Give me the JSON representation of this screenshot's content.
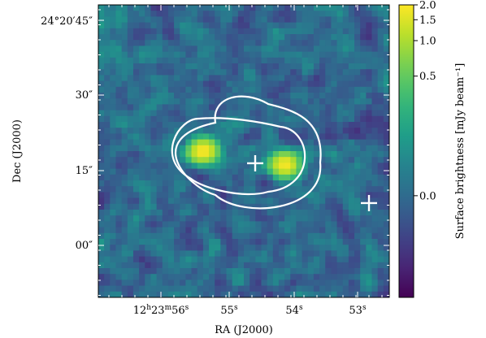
{
  "chart_data": {
    "type": "heatmap",
    "title": "",
    "xlabel": "RA (J2000)",
    "ylabel": "Dec (J2000)",
    "colorbar_label": "Surface brightness [mJy beam⁻¹]",
    "x_tick_labels": [
      "12h23m56s",
      "55s",
      "54s",
      "53s"
    ],
    "y_tick_labels": [
      "24°20′45″",
      "30″",
      "15″",
      "00″"
    ],
    "colorbar_tick_labels": [
      "2.0",
      "1.5",
      "1.0",
      "0.5",
      "0.0"
    ],
    "colorbar_ticks": [
      2.0,
      1.5,
      1.0,
      0.5,
      0.0
    ],
    "colorbar_range": [
      -0.35,
      2.0
    ],
    "colorbar_scale": "asinh",
    "colormap": "viridis",
    "background_level": 0.0,
    "sources": [
      {
        "ra_s": 55.4,
        "dec_arcsec": 19.5,
        "peak": 2.0
      },
      {
        "ra_s": 54.15,
        "dec_arcsec": 16.8,
        "peak": 1.9
      }
    ],
    "markers": [
      {
        "symbol": "+",
        "ra_s": 54.6,
        "dec_arcsec": 17.1,
        "color": "#ffffff"
      },
      {
        "symbol": "+",
        "ra_s": 52.85,
        "dec_arcsec": 9.2,
        "color": "#ffffff"
      }
    ],
    "contours": [
      {
        "level": "inner",
        "color": "#ffffff"
      },
      {
        "level": "outer",
        "color": "#ffffff"
      }
    ]
  }
}
